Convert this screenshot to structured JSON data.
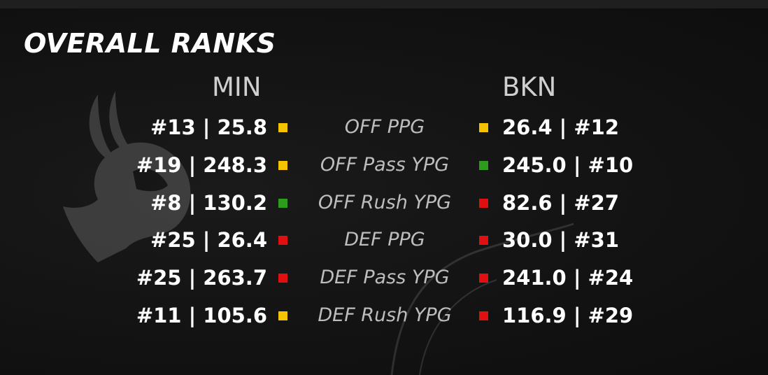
{
  "title": "OVERALL RANKS",
  "teams": {
    "left": "MIN",
    "right": "BKN"
  },
  "colors": {
    "yellow": "#f5c400",
    "green": "#2e9a1e",
    "red": "#e01010",
    "background": "#121212"
  },
  "rows": [
    {
      "left_value": "#13 | 25.8",
      "left_indicator": "yellow",
      "label": "OFF PPG",
      "right_indicator": "yellow",
      "right_value": "26.4 | #12"
    },
    {
      "left_value": "#19 | 248.3",
      "left_indicator": "yellow",
      "label": "OFF Pass YPG",
      "right_indicator": "green",
      "right_value": "245.0 | #10"
    },
    {
      "left_value": "#8 | 130.2",
      "left_indicator": "green",
      "label": "OFF Rush YPG",
      "right_indicator": "red",
      "right_value": "82.6 | #27"
    },
    {
      "left_value": "#25 | 26.4",
      "left_indicator": "red",
      "label": "DEF PPG",
      "right_indicator": "red",
      "right_value": "30.0 | #31"
    },
    {
      "left_value": "#25 | 263.7",
      "left_indicator": "red",
      "label": "DEF Pass YPG",
      "right_indicator": "red",
      "right_value": "241.0 | #24"
    },
    {
      "left_value": "#11 | 105.6",
      "left_indicator": "yellow",
      "label": "DEF Rush YPG",
      "right_indicator": "red",
      "right_value": "116.9 | #29"
    }
  ],
  "background_logo": "vikings-logo-icon"
}
